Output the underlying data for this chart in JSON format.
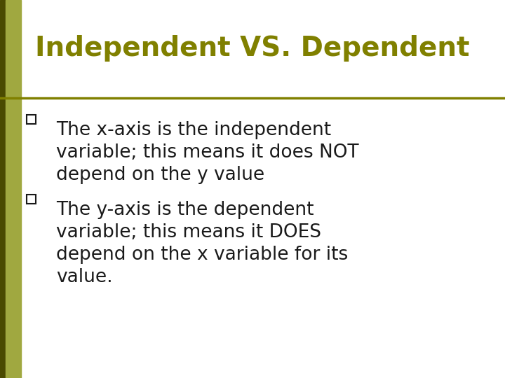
{
  "title": "Independent VS. Dependent",
  "title_color": "#808000",
  "title_fontsize": 28,
  "background_color": "#ffffff",
  "left_bar_color": "#4a4a00",
  "left_bar2_color": "#a0a840",
  "separator_color": "#808000",
  "bullet_color": "#1a1a1a",
  "bullet1_line1": "The x-axis is the independent",
  "bullet1_line2": "variable; this means it does NOT",
  "bullet1_line3": "depend on the y value",
  "bullet2_line1": "The y-axis is the dependent",
  "bullet2_line2": "variable; this means it DOES",
  "bullet2_line3": "depend on the x variable for its",
  "bullet2_line4": "value.",
  "body_fontsize": 19,
  "body_color": "#1a1a1a",
  "font_family": "DejaVu Sans"
}
